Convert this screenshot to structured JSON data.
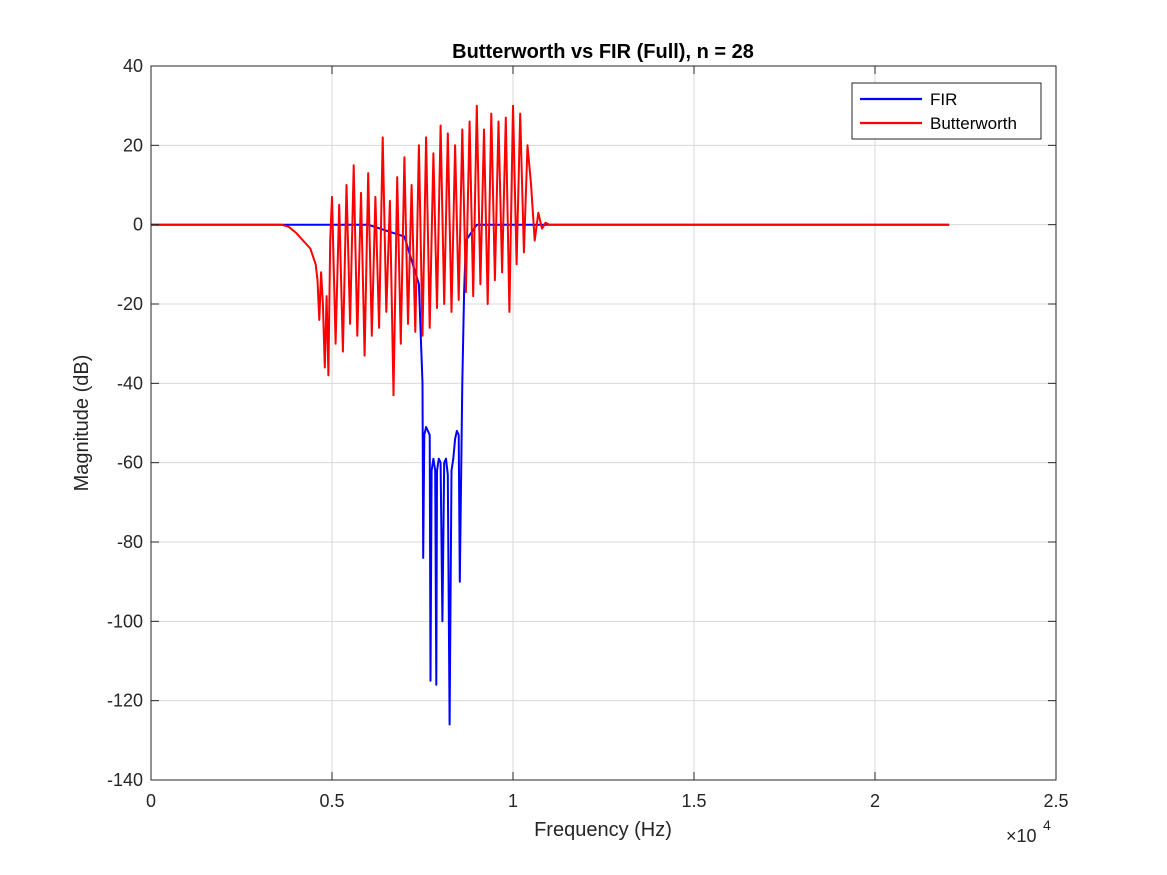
{
  "chart_data": {
    "type": "line",
    "title": "Butterworth vs FIR (Full), n = 28",
    "xlabel": "Frequency (Hz)",
    "ylabel": "Magnitude (dB)",
    "x_exponent_label": "×10",
    "x_exponent_power": "4",
    "xlim": [
      0,
      2.5
    ],
    "ylim": [
      -140,
      40
    ],
    "x_ticks": [
      0,
      0.5,
      1,
      1.5,
      2,
      2.5
    ],
    "x_tick_labels": [
      "0",
      "0.5",
      "1",
      "1.5",
      "2",
      "2.5"
    ],
    "y_ticks": [
      40,
      20,
      0,
      -20,
      -40,
      -60,
      -80,
      -100,
      -120,
      -140
    ],
    "y_tick_labels": [
      "40",
      "20",
      "0",
      "-20",
      "-40",
      "-60",
      "-80",
      "-100",
      "-120",
      "-140"
    ],
    "grid": true,
    "legend_position": "top-right",
    "series": [
      {
        "name": "FIR",
        "color": "#0000ff",
        "x": [
          0,
          0.36,
          0.5,
          0.6,
          0.7,
          0.74,
          0.75,
          0.752,
          0.755,
          0.76,
          0.77,
          0.772,
          0.775,
          0.78,
          0.785,
          0.788,
          0.79,
          0.795,
          0.8,
          0.805,
          0.81,
          0.815,
          0.82,
          0.825,
          0.83,
          0.835,
          0.84,
          0.845,
          0.85,
          0.853,
          0.86,
          0.865,
          0.87,
          0.9,
          1.0,
          1.05,
          1.1,
          1.5,
          2.0,
          2.205
        ],
        "values": [
          0,
          0,
          0,
          0,
          -3,
          -15,
          -40,
          -84,
          -53,
          -51,
          -53,
          -115,
          -62,
          -59,
          -62,
          -116,
          -62,
          -59,
          -60,
          -100,
          -60,
          -59,
          -63,
          -126,
          -62,
          -59,
          -54,
          -52,
          -53,
          -90,
          -40,
          -17,
          -4,
          0,
          0,
          0,
          0,
          0,
          0,
          0
        ]
      },
      {
        "name": "Butterworth",
        "color": "#ff0000",
        "x": [
          0,
          0.36,
          0.38,
          0.4,
          0.42,
          0.44,
          0.455,
          0.46,
          0.465,
          0.47,
          0.475,
          0.48,
          0.485,
          0.49,
          0.495,
          0.5,
          0.51,
          0.52,
          0.53,
          0.54,
          0.55,
          0.56,
          0.57,
          0.58,
          0.59,
          0.6,
          0.61,
          0.62,
          0.63,
          0.64,
          0.65,
          0.66,
          0.67,
          0.68,
          0.69,
          0.7,
          0.71,
          0.72,
          0.73,
          0.74,
          0.75,
          0.76,
          0.77,
          0.78,
          0.79,
          0.8,
          0.81,
          0.82,
          0.83,
          0.84,
          0.85,
          0.86,
          0.87,
          0.88,
          0.89,
          0.9,
          0.91,
          0.92,
          0.93,
          0.94,
          0.95,
          0.96,
          0.97,
          0.98,
          0.99,
          1.0,
          1.01,
          1.02,
          1.03,
          1.04,
          1.05,
          1.06,
          1.07,
          1.08,
          1.09,
          1.1,
          1.5,
          2.0,
          2.205
        ],
        "values": [
          0,
          0,
          -0.5,
          -2,
          -4,
          -6,
          -10,
          -14,
          -24,
          -12,
          -20,
          -36,
          -18,
          -38,
          -4,
          7,
          -30,
          5,
          -32,
          10,
          -25,
          15,
          -28,
          8,
          -33,
          13,
          -28,
          7,
          -26,
          22,
          -22,
          6,
          -43,
          12,
          -30,
          17,
          -25,
          10,
          -27,
          20,
          -28,
          22,
          -26,
          18,
          -21,
          25,
          -20,
          23,
          -22,
          20,
          -19,
          24,
          -17,
          26,
          -18,
          30,
          -15,
          24,
          -20,
          28,
          -14,
          26,
          -12,
          27,
          -22,
          30,
          -10,
          28,
          -7,
          20,
          10,
          -4,
          3,
          -1,
          0.5,
          0,
          0,
          0,
          0
        ]
      }
    ]
  }
}
